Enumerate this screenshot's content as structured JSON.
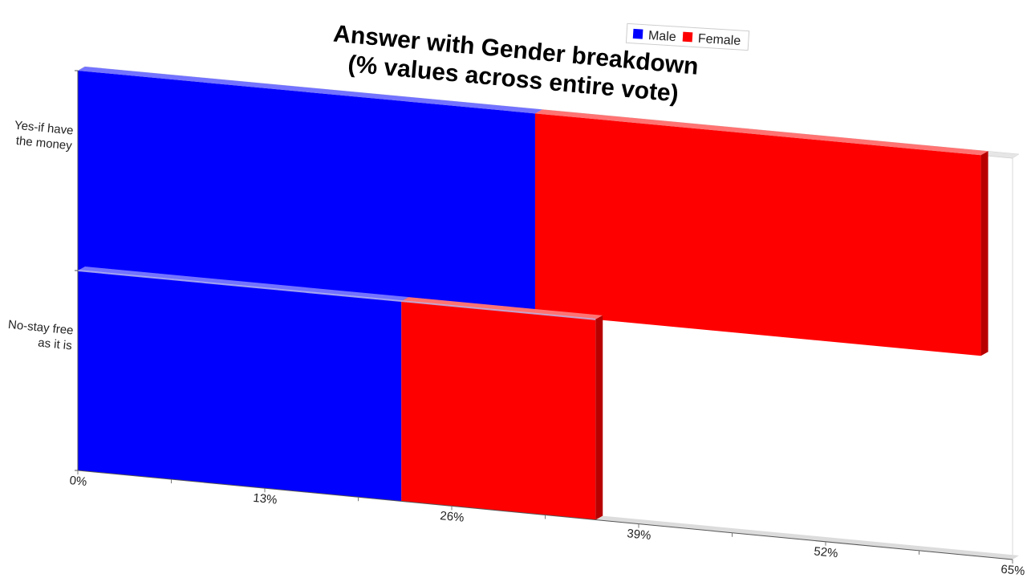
{
  "chart_data": {
    "type": "bar",
    "orientation": "horizontal",
    "stacked": true,
    "perspective_3d": true,
    "title": "Answer with Gender breakdown",
    "subtitle": "(% values across entire vote)",
    "categories": [
      "Yes-if have the money",
      "No-stay free as it is"
    ],
    "category_label_lines": [
      [
        "Yes-if have",
        "the money"
      ],
      [
        "No-stay free",
        "as it is"
      ]
    ],
    "series": [
      {
        "name": "Male",
        "color": "#0000ff",
        "values": [
          31.8,
          22.5
        ]
      },
      {
        "name": "Female",
        "color": "#ff0000",
        "values": [
          31.0,
          13.5
        ]
      }
    ],
    "xlim": [
      0,
      65
    ],
    "x_ticks": [
      "0%",
      "13%",
      "26%",
      "39%",
      "52%",
      "65%"
    ],
    "x_tick_values": [
      0,
      13,
      26,
      39,
      52,
      65
    ],
    "grid": false,
    "legend_position": "top-right"
  }
}
